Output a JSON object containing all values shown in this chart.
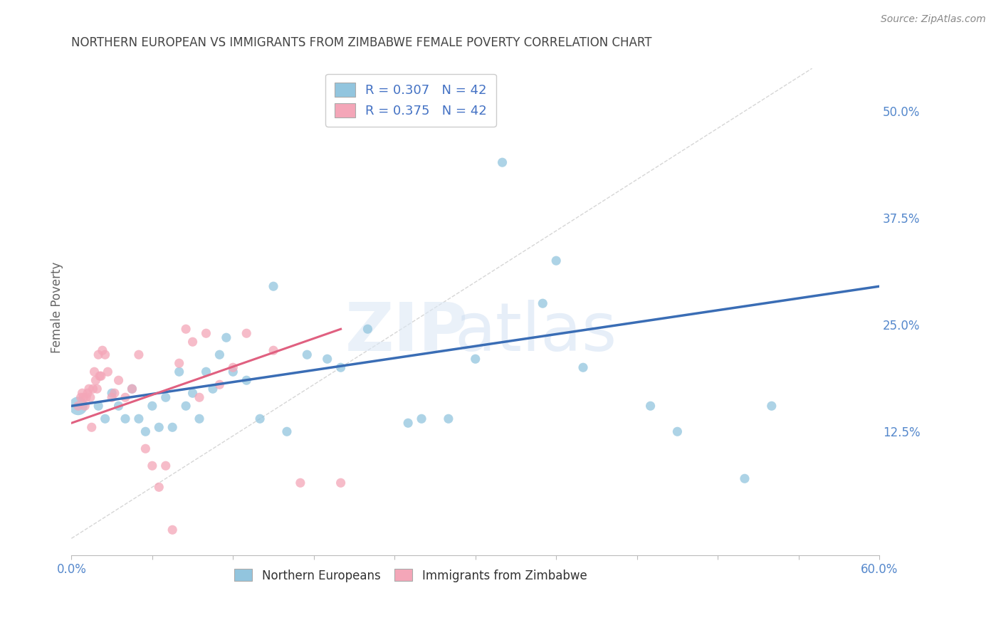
{
  "title": "NORTHERN EUROPEAN VS IMMIGRANTS FROM ZIMBABWE FEMALE POVERTY CORRELATION CHART",
  "source": "Source: ZipAtlas.com",
  "ylabel": "Female Poverty",
  "xlim": [
    0.0,
    0.6
  ],
  "ylim": [
    -0.02,
    0.56
  ],
  "yticks_right": [
    0.0,
    0.125,
    0.25,
    0.375,
    0.5
  ],
  "ytick_labels_right": [
    "",
    "12.5%",
    "25.0%",
    "37.5%",
    "50.0%"
  ],
  "blue_color": "#92c5de",
  "pink_color": "#f4a6b8",
  "blue_line_color": "#3a6db5",
  "pink_line_color": "#e06080",
  "watermark_zip": "ZIP",
  "watermark_atlas": "atlas",
  "blue_scatter_x": [
    0.005,
    0.02,
    0.025,
    0.03,
    0.035,
    0.04,
    0.045,
    0.05,
    0.055,
    0.06,
    0.065,
    0.07,
    0.075,
    0.08,
    0.085,
    0.09,
    0.095,
    0.1,
    0.105,
    0.11,
    0.115,
    0.12,
    0.13,
    0.14,
    0.15,
    0.16,
    0.175,
    0.19,
    0.2,
    0.22,
    0.25,
    0.26,
    0.28,
    0.3,
    0.32,
    0.35,
    0.36,
    0.38,
    0.43,
    0.45,
    0.5,
    0.52
  ],
  "blue_scatter_y": [
    0.155,
    0.155,
    0.14,
    0.17,
    0.155,
    0.14,
    0.175,
    0.14,
    0.125,
    0.155,
    0.13,
    0.165,
    0.13,
    0.195,
    0.155,
    0.17,
    0.14,
    0.195,
    0.175,
    0.215,
    0.235,
    0.195,
    0.185,
    0.14,
    0.295,
    0.125,
    0.215,
    0.21,
    0.2,
    0.245,
    0.135,
    0.14,
    0.14,
    0.21,
    0.44,
    0.275,
    0.325,
    0.2,
    0.155,
    0.125,
    0.07,
    0.155
  ],
  "blue_large_idx": [
    0
  ],
  "pink_scatter_x": [
    0.005,
    0.007,
    0.008,
    0.009,
    0.01,
    0.011,
    0.012,
    0.013,
    0.014,
    0.015,
    0.016,
    0.017,
    0.018,
    0.019,
    0.02,
    0.021,
    0.022,
    0.023,
    0.025,
    0.027,
    0.03,
    0.032,
    0.035,
    0.04,
    0.045,
    0.05,
    0.055,
    0.06,
    0.065,
    0.07,
    0.075,
    0.08,
    0.085,
    0.09,
    0.095,
    0.1,
    0.11,
    0.12,
    0.13,
    0.15,
    0.17,
    0.2
  ],
  "pink_scatter_y": [
    0.155,
    0.165,
    0.17,
    0.165,
    0.155,
    0.165,
    0.17,
    0.175,
    0.165,
    0.13,
    0.175,
    0.195,
    0.185,
    0.175,
    0.215,
    0.19,
    0.19,
    0.22,
    0.215,
    0.195,
    0.165,
    0.17,
    0.185,
    0.165,
    0.175,
    0.215,
    0.105,
    0.085,
    0.06,
    0.085,
    0.01,
    0.205,
    0.245,
    0.23,
    0.165,
    0.24,
    0.18,
    0.2,
    0.24,
    0.22,
    0.065,
    0.065
  ],
  "pink_large_idx": [],
  "blue_line_x": [
    0.0,
    0.6
  ],
  "blue_line_y": [
    0.155,
    0.295
  ],
  "pink_line_x": [
    0.0,
    0.2
  ],
  "pink_line_y": [
    0.135,
    0.245
  ],
  "ref_line_x": [
    0.0,
    0.55
  ],
  "ref_line_y": [
    0.0,
    0.55
  ],
  "background_color": "#ffffff",
  "grid_color": "#e0e0e0",
  "title_color": "#444444",
  "axis_label_color": "#666666",
  "right_tick_color": "#5588cc",
  "bottom_tick_color": "#5588cc"
}
